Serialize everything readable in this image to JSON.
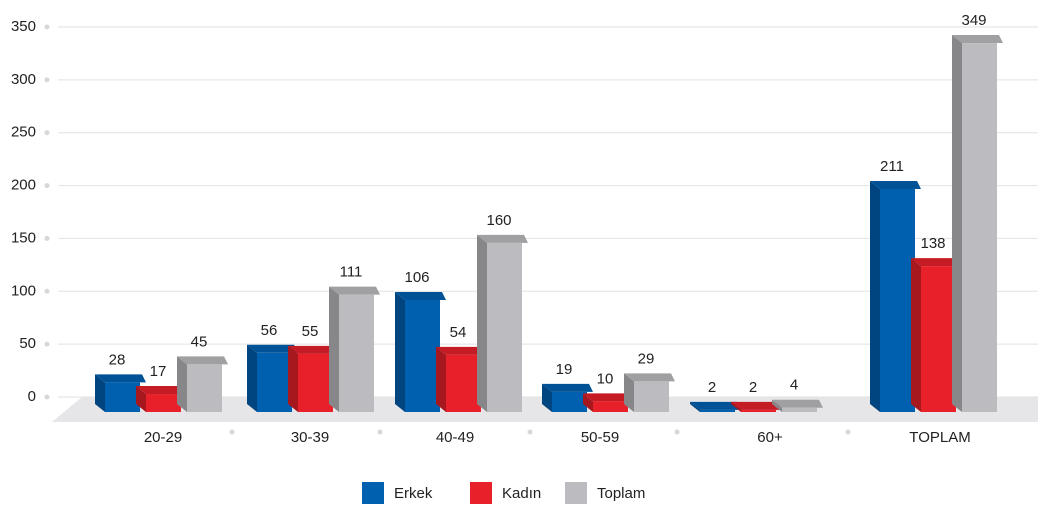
{
  "chart_data": {
    "type": "bar3d",
    "categories": [
      "20-29",
      "30-39",
      "40-49",
      "50-59",
      "60+",
      "TOPLAM"
    ],
    "series": [
      {
        "name": "Erkek",
        "color": "#0060b0",
        "values": [
          28,
          56,
          106,
          19,
          2,
          211
        ]
      },
      {
        "name": "Kadın",
        "color": "#e8202a",
        "values": [
          17,
          55,
          54,
          10,
          2,
          138
        ]
      },
      {
        "name": "Toplam",
        "color": "#bcbcc0",
        "values": [
          45,
          111,
          160,
          29,
          4,
          349
        ]
      }
    ],
    "ylim": [
      0,
      350
    ],
    "yticks": [
      0,
      50,
      100,
      150,
      200,
      250,
      300,
      350
    ],
    "grid": true,
    "legend": "bottom"
  }
}
